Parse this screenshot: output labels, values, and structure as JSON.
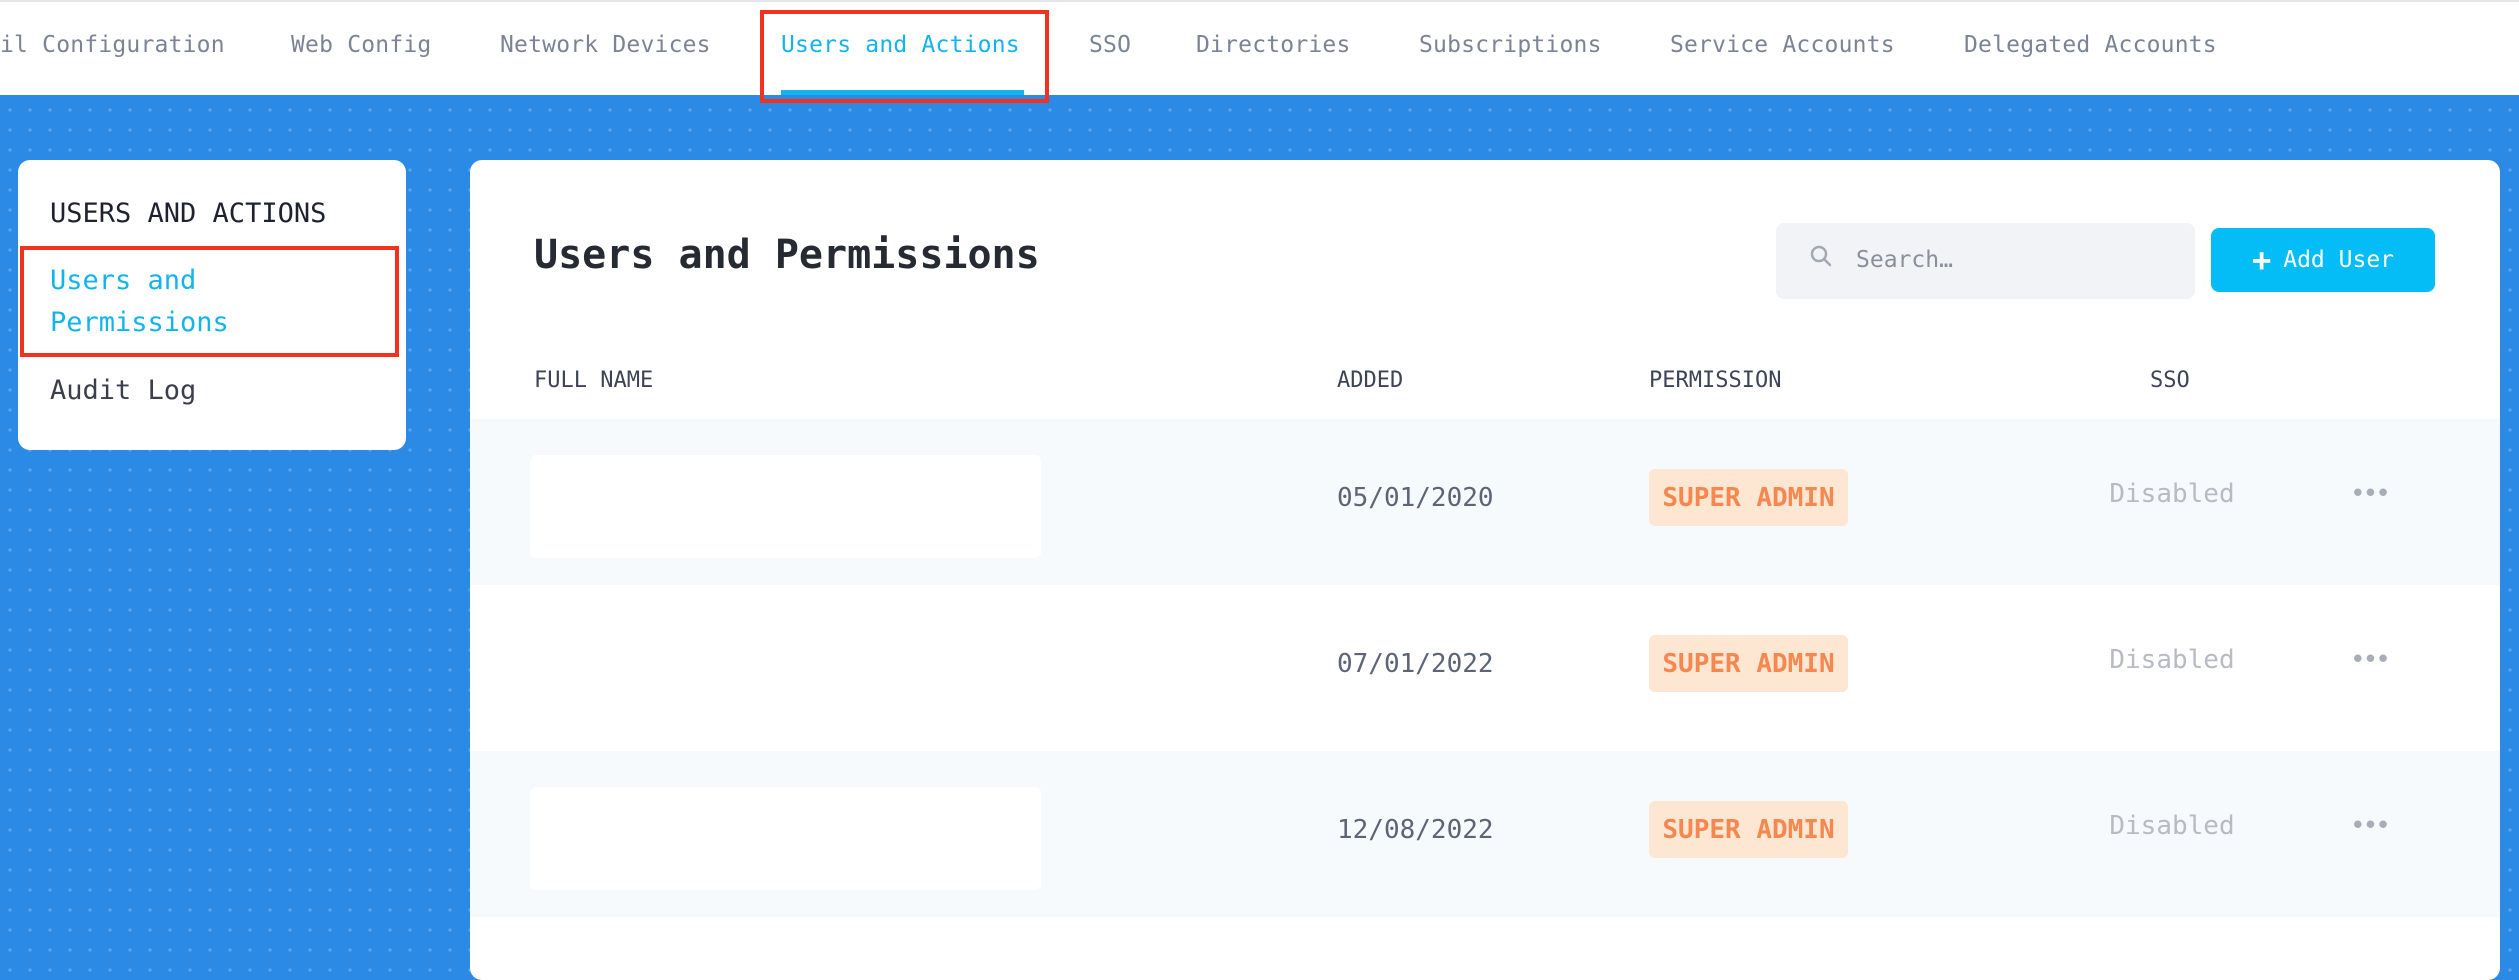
{
  "nav": {
    "tabs": [
      {
        "label": "il Configuration",
        "active": false
      },
      {
        "label": "Web Config",
        "active": false
      },
      {
        "label": "Network Devices",
        "active": false
      },
      {
        "label": "Users and Actions",
        "active": true
      },
      {
        "label": "SSO",
        "active": false
      },
      {
        "label": "Directories",
        "active": false
      },
      {
        "label": "Subscriptions",
        "active": false
      },
      {
        "label": "Service Accounts",
        "active": false
      },
      {
        "label": "Delegated Accounts",
        "active": false
      }
    ]
  },
  "sidebar": {
    "heading": "USERS AND ACTIONS",
    "items": [
      {
        "label_line1": "Users and",
        "label_line2": "Permissions",
        "active": true
      },
      {
        "label": "Audit Log",
        "active": false
      }
    ]
  },
  "main": {
    "title": "Users and Permissions",
    "search": {
      "placeholder": "Search…",
      "icon": "search-icon"
    },
    "add_button": {
      "icon": "+",
      "label": "Add User"
    },
    "columns": [
      "FULL NAME",
      "ADDED",
      "PERMISSION",
      "SSO"
    ],
    "rows": [
      {
        "added": "05/01/2020",
        "permission": "SUPER ADMIN",
        "sso": "Disabled",
        "more": "•••"
      },
      {
        "added": "07/01/2022",
        "permission": "SUPER ADMIN",
        "sso": "Disabled",
        "more": "•••"
      },
      {
        "added": "12/08/2022",
        "permission": "SUPER ADMIN",
        "sso": "Disabled",
        "more": "•••"
      }
    ]
  },
  "colors": {
    "accent": "#13b4ee",
    "button": "#04bdf6",
    "background": "#2a8ae6",
    "badge_text": "#f5874f",
    "badge_bg": "#fde6d2",
    "highlight": "#f0321e"
  }
}
